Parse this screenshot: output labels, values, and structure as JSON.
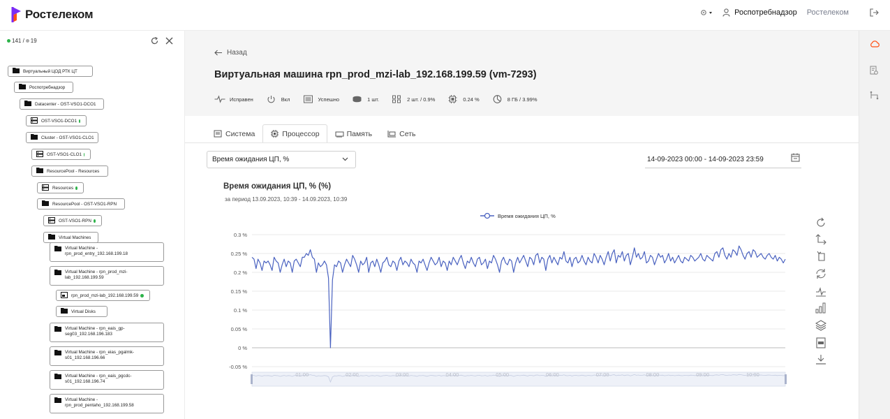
{
  "brand": {
    "name": "Ростелеком",
    "accent": "#7b2cf5",
    "accent2": "#ff4f12"
  },
  "header": {
    "user_org": "Роспотребнадзор",
    "company": "Ростелеком"
  },
  "sidebar": {
    "counter_ok": "141 /",
    "counter_total": "19",
    "items": [
      {
        "label": "Виртуальный ЦОД РТК ЦТ",
        "type": "folder"
      },
      {
        "label": "Роспотребнадзор",
        "type": "folder"
      },
      {
        "label": "Datacenter - OST-VSO1-DCO1",
        "type": "folder"
      },
      {
        "label": "OST-VSO1-DCO1",
        "type": "server",
        "status": "ok"
      },
      {
        "label": "Cluster - OST-VSO1-CLO1",
        "type": "folder"
      },
      {
        "label": "OST-VSO1-CLO1",
        "type": "server",
        "status": "ok"
      },
      {
        "label": "ResourcePool - Resources",
        "type": "folder"
      },
      {
        "label": "Resources",
        "type": "server",
        "status": "ok"
      },
      {
        "label": "ResourcePool - OST-VSO1-RPN",
        "type": "folder"
      },
      {
        "label": "OST-VSO1-RPN",
        "type": "server",
        "status": "ok"
      },
      {
        "label": "Virtual Machines",
        "type": "folder"
      },
      {
        "label": "Virtual Machine - rpn_prod_entry_192.168.199.18",
        "type": "folder"
      },
      {
        "label": "Virtual Machine - rpn_prod_mzi-lab_192.168.199.59",
        "type": "folder"
      },
      {
        "label": "rpn_prod_mzi-lab_192.168.199.59",
        "type": "vm",
        "status": "ok"
      },
      {
        "label": "Virtual Disks",
        "type": "folder"
      },
      {
        "label": "Virtual Machine - rpn_eais_gp-seg03_192.168.196.183",
        "type": "folder"
      },
      {
        "label": "Virtual Machine - rpn_eias_pgalmk-s01_192.168.196.66",
        "type": "folder"
      },
      {
        "label": "Virtual Machine - rpn_eais_pgcdc-s01_192.168.196.74",
        "type": "folder"
      },
      {
        "label": "Virtual Machine - rpn_prod_pentaho_192.168.199.58",
        "type": "folder"
      }
    ]
  },
  "page": {
    "back_label": "Назад",
    "title": "Виртуальная машина rpn_prod_mzi-lab_192.168.199.59 (vm-7293)",
    "stats": [
      {
        "icon": "pulse-icon",
        "text": "Исправен"
      },
      {
        "icon": "power-icon",
        "text": "Вкл"
      },
      {
        "icon": "backup-icon",
        "text": "Успешно"
      },
      {
        "icon": "disk-icon",
        "text": "1 шт."
      },
      {
        "icon": "cores-icon",
        "text": "2 шт. / 0.9%"
      },
      {
        "icon": "cpu-icon",
        "text": "0.24 %"
      },
      {
        "icon": "memory-icon",
        "text": "8 ГБ / 3.99%"
      }
    ],
    "tabs": [
      {
        "label": "Система",
        "active": false
      },
      {
        "label": "Процессор",
        "active": true
      },
      {
        "label": "Память",
        "active": false
      },
      {
        "label": "Сеть",
        "active": false
      }
    ],
    "metric_select": "Время ожидания ЦП, %",
    "date_range": "14-09-2023 00:00 - 14-09-2023 23:59"
  },
  "chart_data": {
    "type": "line",
    "title": "Время ожидания ЦП, % (%)",
    "subtitle": "за период 13.09.2023, 10:39 - 14.09.2023, 10:39",
    "legend": [
      "Время ожидания ЦП, %"
    ],
    "legend_position": "top-center",
    "ylim": [
      -0.05,
      0.3
    ],
    "yticks": [
      "-0.05 %",
      "0 %",
      "0.05 %",
      "0.1 %",
      "0.15 %",
      "0.2 %",
      "0.25 %",
      "0.3 %"
    ],
    "xticks": [
      "01:00",
      "02:00",
      "03:00",
      "04:00",
      "05:00",
      "06:00",
      "07:00",
      "08:00",
      "09:00",
      "10:00"
    ],
    "x_range_hours": [
      0.0,
      10.65
    ],
    "grid": "horizontal",
    "color": "#4a62c0",
    "series": [
      {
        "name": "Время ожидания ЦП, %",
        "values": [
          0.24,
          0.235,
          0.21,
          0.235,
          0.225,
          0.205,
          0.23,
          0.225,
          0.23,
          0.22,
          0.205,
          0.24,
          0.23,
          0.225,
          0.2,
          0.22,
          0.235,
          0.215,
          0.23,
          0.225,
          0.2,
          0.23,
          0.235,
          0.225,
          0.215,
          0.24,
          0.24,
          0.25,
          0.245,
          0.26,
          0.24,
          0.235,
          0.2,
          0.225,
          0.215,
          0.22,
          0.23,
          0.22,
          0.185,
          0.0,
          0.18,
          0.22,
          0.215,
          0.23,
          0.225,
          0.2,
          0.22,
          0.235,
          0.225,
          0.215,
          0.245,
          0.235,
          0.22,
          0.2,
          0.23,
          0.22,
          0.225,
          0.24,
          0.2,
          0.225,
          0.23,
          0.215,
          0.235,
          0.22,
          0.2,
          0.225,
          0.23,
          0.24,
          0.22,
          0.215,
          0.23,
          0.225,
          0.205,
          0.23,
          0.24,
          0.22,
          0.23,
          0.225,
          0.215,
          0.235,
          0.225,
          0.22,
          0.2,
          0.23,
          0.225,
          0.235,
          0.22,
          0.205,
          0.225,
          0.24,
          0.23,
          0.22,
          0.225,
          0.24,
          0.215,
          0.23,
          0.225,
          0.205,
          0.23,
          0.22,
          0.24,
          0.23,
          0.22,
          0.235,
          0.245,
          0.225,
          0.21,
          0.23,
          0.225,
          0.24,
          0.225,
          0.215,
          0.235,
          0.24,
          0.22,
          0.225,
          0.235,
          0.21,
          0.23,
          0.225,
          0.245,
          0.235,
          0.22,
          0.2,
          0.23,
          0.24,
          0.225,
          0.22,
          0.235,
          0.23,
          0.2,
          0.225,
          0.24,
          0.225,
          0.235,
          0.245,
          0.23,
          0.215,
          0.24,
          0.235,
          0.22,
          0.245,
          0.25,
          0.225,
          0.24,
          0.235,
          0.205,
          0.235,
          0.245,
          0.225,
          0.24,
          0.23,
          0.22,
          0.24,
          0.235,
          0.255,
          0.23,
          0.225,
          0.24,
          0.215,
          0.235,
          0.24,
          0.225,
          0.23,
          0.245,
          0.23,
          0.22,
          0.24,
          0.23,
          0.225,
          0.25,
          0.24,
          0.225,
          0.245,
          0.235,
          0.22,
          0.24,
          0.255,
          0.23,
          0.25,
          0.26,
          0.225,
          0.245,
          0.24,
          0.255,
          0.23,
          0.245,
          0.25,
          0.22,
          0.24,
          0.265,
          0.24,
          0.25,
          0.235,
          0.24,
          0.255,
          0.225,
          0.23,
          0.245,
          0.24,
          0.22,
          0.235,
          0.25,
          0.24,
          0.245,
          0.225,
          0.235,
          0.25,
          0.23,
          0.24,
          0.225,
          0.235,
          0.245,
          0.23,
          0.225,
          0.24,
          0.235,
          0.23,
          0.245,
          0.24,
          0.23,
          0.235,
          0.24,
          0.25,
          0.235,
          0.23,
          0.245,
          0.24,
          0.235,
          0.23,
          0.25,
          0.255,
          0.24,
          0.26,
          0.265,
          0.245,
          0.235,
          0.25,
          0.24,
          0.26,
          0.255,
          0.245,
          0.27,
          0.26,
          0.245,
          0.235,
          0.25,
          0.255,
          0.24,
          0.26,
          0.255,
          0.24,
          0.245,
          0.25,
          0.24,
          0.235,
          0.245,
          0.25,
          0.24,
          0.235,
          0.245,
          0.23,
          0.24,
          0.235,
          0.225,
          0.235
        ]
      }
    ]
  },
  "toolbox": [
    "restore-icon",
    "zoom-icon",
    "zoom-back-icon",
    "refresh-icon",
    "line-type-icon",
    "bar-type-icon",
    "stack-icon",
    "data-view-icon",
    "download-icon"
  ]
}
